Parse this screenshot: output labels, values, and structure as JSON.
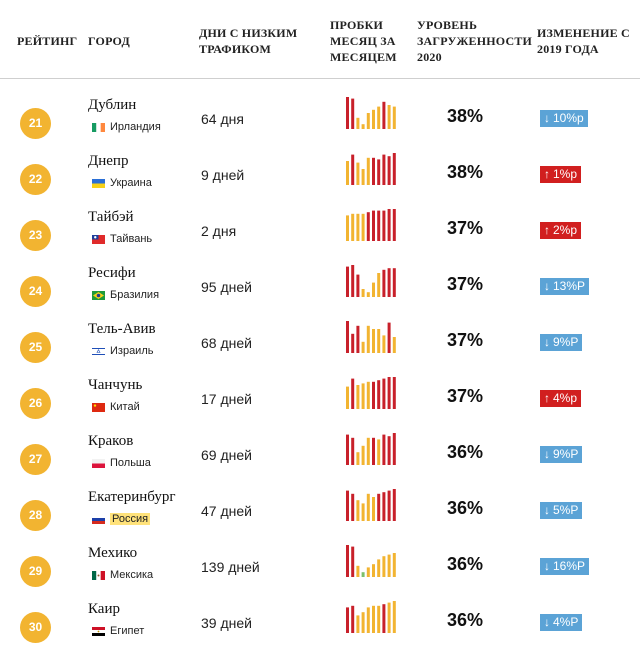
{
  "header": {
    "rank": "РЕЙТИНГ",
    "city": "ГОРОД",
    "days_line1": "ДНИ С НИЗКИМ",
    "days_line2": "ТРАФИКОМ",
    "jams_line1": "ПРОБКИ",
    "jams_line2": "МЕСЯЦ ЗА",
    "jams_line3": "МЕСЯЦЕМ",
    "level_line1": "УРОВЕНЬ",
    "level_line2": "ЗАГРУЖЕННОСТИ",
    "level_line3": "2020",
    "change_line1": "ИЗМЕНЕНИЕ С",
    "change_line2": "2019 ГОДА"
  },
  "colors": {
    "badge": "#f2b431",
    "bar_red": "#c8202a",
    "bar_yellow": "#f2b431",
    "bar_green": "#7cc06a",
    "down": "#5ba3d6",
    "up": "#d11f1f"
  },
  "rows": [
    {
      "rank": "21",
      "city": "Дублин",
      "country": "Ирландия",
      "flag": "ireland",
      "days": "64 дня",
      "level": "38%",
      "change": "10%р",
      "dir": "down",
      "arrow": "↓",
      "highlight": false,
      "bars": [
        {
          "v": 1.0,
          "c": "red"
        },
        {
          "v": 0.95,
          "c": "red"
        },
        {
          "v": 0.35,
          "c": "yellow"
        },
        {
          "v": 0.15,
          "c": "yellow"
        },
        {
          "v": 0.5,
          "c": "yellow"
        },
        {
          "v": 0.6,
          "c": "yellow"
        },
        {
          "v": 0.7,
          "c": "yellow"
        },
        {
          "v": 0.85,
          "c": "red"
        },
        {
          "v": 0.75,
          "c": "yellow"
        },
        {
          "v": 0.7,
          "c": "yellow"
        }
      ]
    },
    {
      "rank": "22",
      "city": "Днепр",
      "country": "Украина",
      "flag": "ukraine",
      "days": "9 дней",
      "level": "38%",
      "change": "1%р",
      "dir": "up",
      "arrow": "↑",
      "highlight": false,
      "bars": [
        {
          "v": 0.75,
          "c": "yellow"
        },
        {
          "v": 0.95,
          "c": "red"
        },
        {
          "v": 0.7,
          "c": "yellow"
        },
        {
          "v": 0.5,
          "c": "yellow"
        },
        {
          "v": 0.85,
          "c": "yellow"
        },
        {
          "v": 0.85,
          "c": "red"
        },
        {
          "v": 0.8,
          "c": "red"
        },
        {
          "v": 0.95,
          "c": "red"
        },
        {
          "v": 0.9,
          "c": "red"
        },
        {
          "v": 1.0,
          "c": "red"
        }
      ]
    },
    {
      "rank": "23",
      "city": "Тайбэй",
      "country": "Тайвань",
      "flag": "taiwan",
      "days": "2 дня",
      "level": "37%",
      "change": "2%р",
      "dir": "up",
      "arrow": "↑",
      "highlight": false,
      "bars": [
        {
          "v": 0.8,
          "c": "yellow"
        },
        {
          "v": 0.85,
          "c": "yellow"
        },
        {
          "v": 0.85,
          "c": "yellow"
        },
        {
          "v": 0.85,
          "c": "yellow"
        },
        {
          "v": 0.9,
          "c": "red"
        },
        {
          "v": 0.95,
          "c": "red"
        },
        {
          "v": 0.95,
          "c": "red"
        },
        {
          "v": 0.95,
          "c": "red"
        },
        {
          "v": 1.0,
          "c": "red"
        },
        {
          "v": 1.0,
          "c": "red"
        }
      ]
    },
    {
      "rank": "24",
      "city": "Ресифи",
      "country": "Бразилия",
      "flag": "brazil",
      "days": "95 дней",
      "level": "37%",
      "change": "13%Р",
      "dir": "down",
      "arrow": "↓",
      "highlight": false,
      "bars": [
        {
          "v": 0.95,
          "c": "red"
        },
        {
          "v": 1.0,
          "c": "red"
        },
        {
          "v": 0.7,
          "c": "red"
        },
        {
          "v": 0.25,
          "c": "yellow"
        },
        {
          "v": 0.15,
          "c": "yellow"
        },
        {
          "v": 0.45,
          "c": "yellow"
        },
        {
          "v": 0.75,
          "c": "yellow"
        },
        {
          "v": 0.85,
          "c": "red"
        },
        {
          "v": 0.9,
          "c": "red"
        },
        {
          "v": 0.9,
          "c": "red"
        }
      ]
    },
    {
      "rank": "25",
      "city": "Тель-Авив",
      "country": "Израиль",
      "flag": "israel",
      "days": "68 дней",
      "level": "37%",
      "change": "9%Р",
      "dir": "down",
      "arrow": "↓",
      "highlight": false,
      "bars": [
        {
          "v": 1.0,
          "c": "red"
        },
        {
          "v": 0.6,
          "c": "red"
        },
        {
          "v": 0.85,
          "c": "red"
        },
        {
          "v": 0.35,
          "c": "yellow"
        },
        {
          "v": 0.85,
          "c": "yellow"
        },
        {
          "v": 0.75,
          "c": "yellow"
        },
        {
          "v": 0.75,
          "c": "yellow"
        },
        {
          "v": 0.55,
          "c": "yellow"
        },
        {
          "v": 0.95,
          "c": "red"
        },
        {
          "v": 0.5,
          "c": "yellow"
        }
      ]
    },
    {
      "rank": "26",
      "city": "Чанчунь",
      "country": "Китай",
      "flag": "china",
      "days": "17 дней",
      "level": "37%",
      "change": "4%р",
      "dir": "up",
      "arrow": "↑",
      "highlight": false,
      "bars": [
        {
          "v": 0.7,
          "c": "yellow"
        },
        {
          "v": 0.95,
          "c": "red"
        },
        {
          "v": 0.75,
          "c": "yellow"
        },
        {
          "v": 0.8,
          "c": "yellow"
        },
        {
          "v": 0.85,
          "c": "yellow"
        },
        {
          "v": 0.85,
          "c": "red"
        },
        {
          "v": 0.9,
          "c": "red"
        },
        {
          "v": 0.95,
          "c": "red"
        },
        {
          "v": 1.0,
          "c": "red"
        },
        {
          "v": 1.0,
          "c": "red"
        }
      ]
    },
    {
      "rank": "27",
      "city": "Краков",
      "country": "Польша",
      "flag": "poland",
      "days": "69 дней",
      "level": "36%",
      "change": "9%Р",
      "dir": "down",
      "arrow": "↓",
      "highlight": false,
      "bars": [
        {
          "v": 0.95,
          "c": "red"
        },
        {
          "v": 0.85,
          "c": "red"
        },
        {
          "v": 0.4,
          "c": "yellow"
        },
        {
          "v": 0.6,
          "c": "yellow"
        },
        {
          "v": 0.85,
          "c": "yellow"
        },
        {
          "v": 0.85,
          "c": "red"
        },
        {
          "v": 0.8,
          "c": "yellow"
        },
        {
          "v": 0.95,
          "c": "red"
        },
        {
          "v": 0.9,
          "c": "red"
        },
        {
          "v": 1.0,
          "c": "red"
        }
      ]
    },
    {
      "rank": "28",
      "city": "Екатеринбург",
      "country": "Россия",
      "flag": "russia",
      "days": "47 дней",
      "level": "36%",
      "change": "5%Р",
      "dir": "down",
      "arrow": "↓",
      "highlight": true,
      "bars": [
        {
          "v": 0.95,
          "c": "red"
        },
        {
          "v": 0.85,
          "c": "red"
        },
        {
          "v": 0.65,
          "c": "yellow"
        },
        {
          "v": 0.55,
          "c": "yellow"
        },
        {
          "v": 0.85,
          "c": "yellow"
        },
        {
          "v": 0.75,
          "c": "yellow"
        },
        {
          "v": 0.85,
          "c": "red"
        },
        {
          "v": 0.9,
          "c": "red"
        },
        {
          "v": 0.95,
          "c": "red"
        },
        {
          "v": 1.0,
          "c": "red"
        }
      ]
    },
    {
      "rank": "29",
      "city": "Мехико",
      "country": "Мексика",
      "flag": "mexico",
      "days": "139 дней",
      "level": "36%",
      "change": "16%Р",
      "dir": "down",
      "arrow": "↓",
      "highlight": false,
      "bars": [
        {
          "v": 1.0,
          "c": "red"
        },
        {
          "v": 0.95,
          "c": "red"
        },
        {
          "v": 0.35,
          "c": "yellow"
        },
        {
          "v": 0.15,
          "c": "green"
        },
        {
          "v": 0.3,
          "c": "yellow"
        },
        {
          "v": 0.4,
          "c": "yellow"
        },
        {
          "v": 0.55,
          "c": "yellow"
        },
        {
          "v": 0.65,
          "c": "yellow"
        },
        {
          "v": 0.7,
          "c": "yellow"
        },
        {
          "v": 0.75,
          "c": "yellow"
        }
      ]
    },
    {
      "rank": "30",
      "city": "Каир",
      "country": "Египет",
      "flag": "egypt",
      "days": "39 дней",
      "level": "36%",
      "change": "4%Р",
      "dir": "down",
      "arrow": "↓",
      "highlight": false,
      "bars": [
        {
          "v": 0.8,
          "c": "red"
        },
        {
          "v": 0.85,
          "c": "red"
        },
        {
          "v": 0.55,
          "c": "yellow"
        },
        {
          "v": 0.65,
          "c": "yellow"
        },
        {
          "v": 0.8,
          "c": "yellow"
        },
        {
          "v": 0.85,
          "c": "yellow"
        },
        {
          "v": 0.85,
          "c": "yellow"
        },
        {
          "v": 0.9,
          "c": "red"
        },
        {
          "v": 0.95,
          "c": "yellow"
        },
        {
          "v": 1.0,
          "c": "yellow"
        }
      ]
    }
  ]
}
